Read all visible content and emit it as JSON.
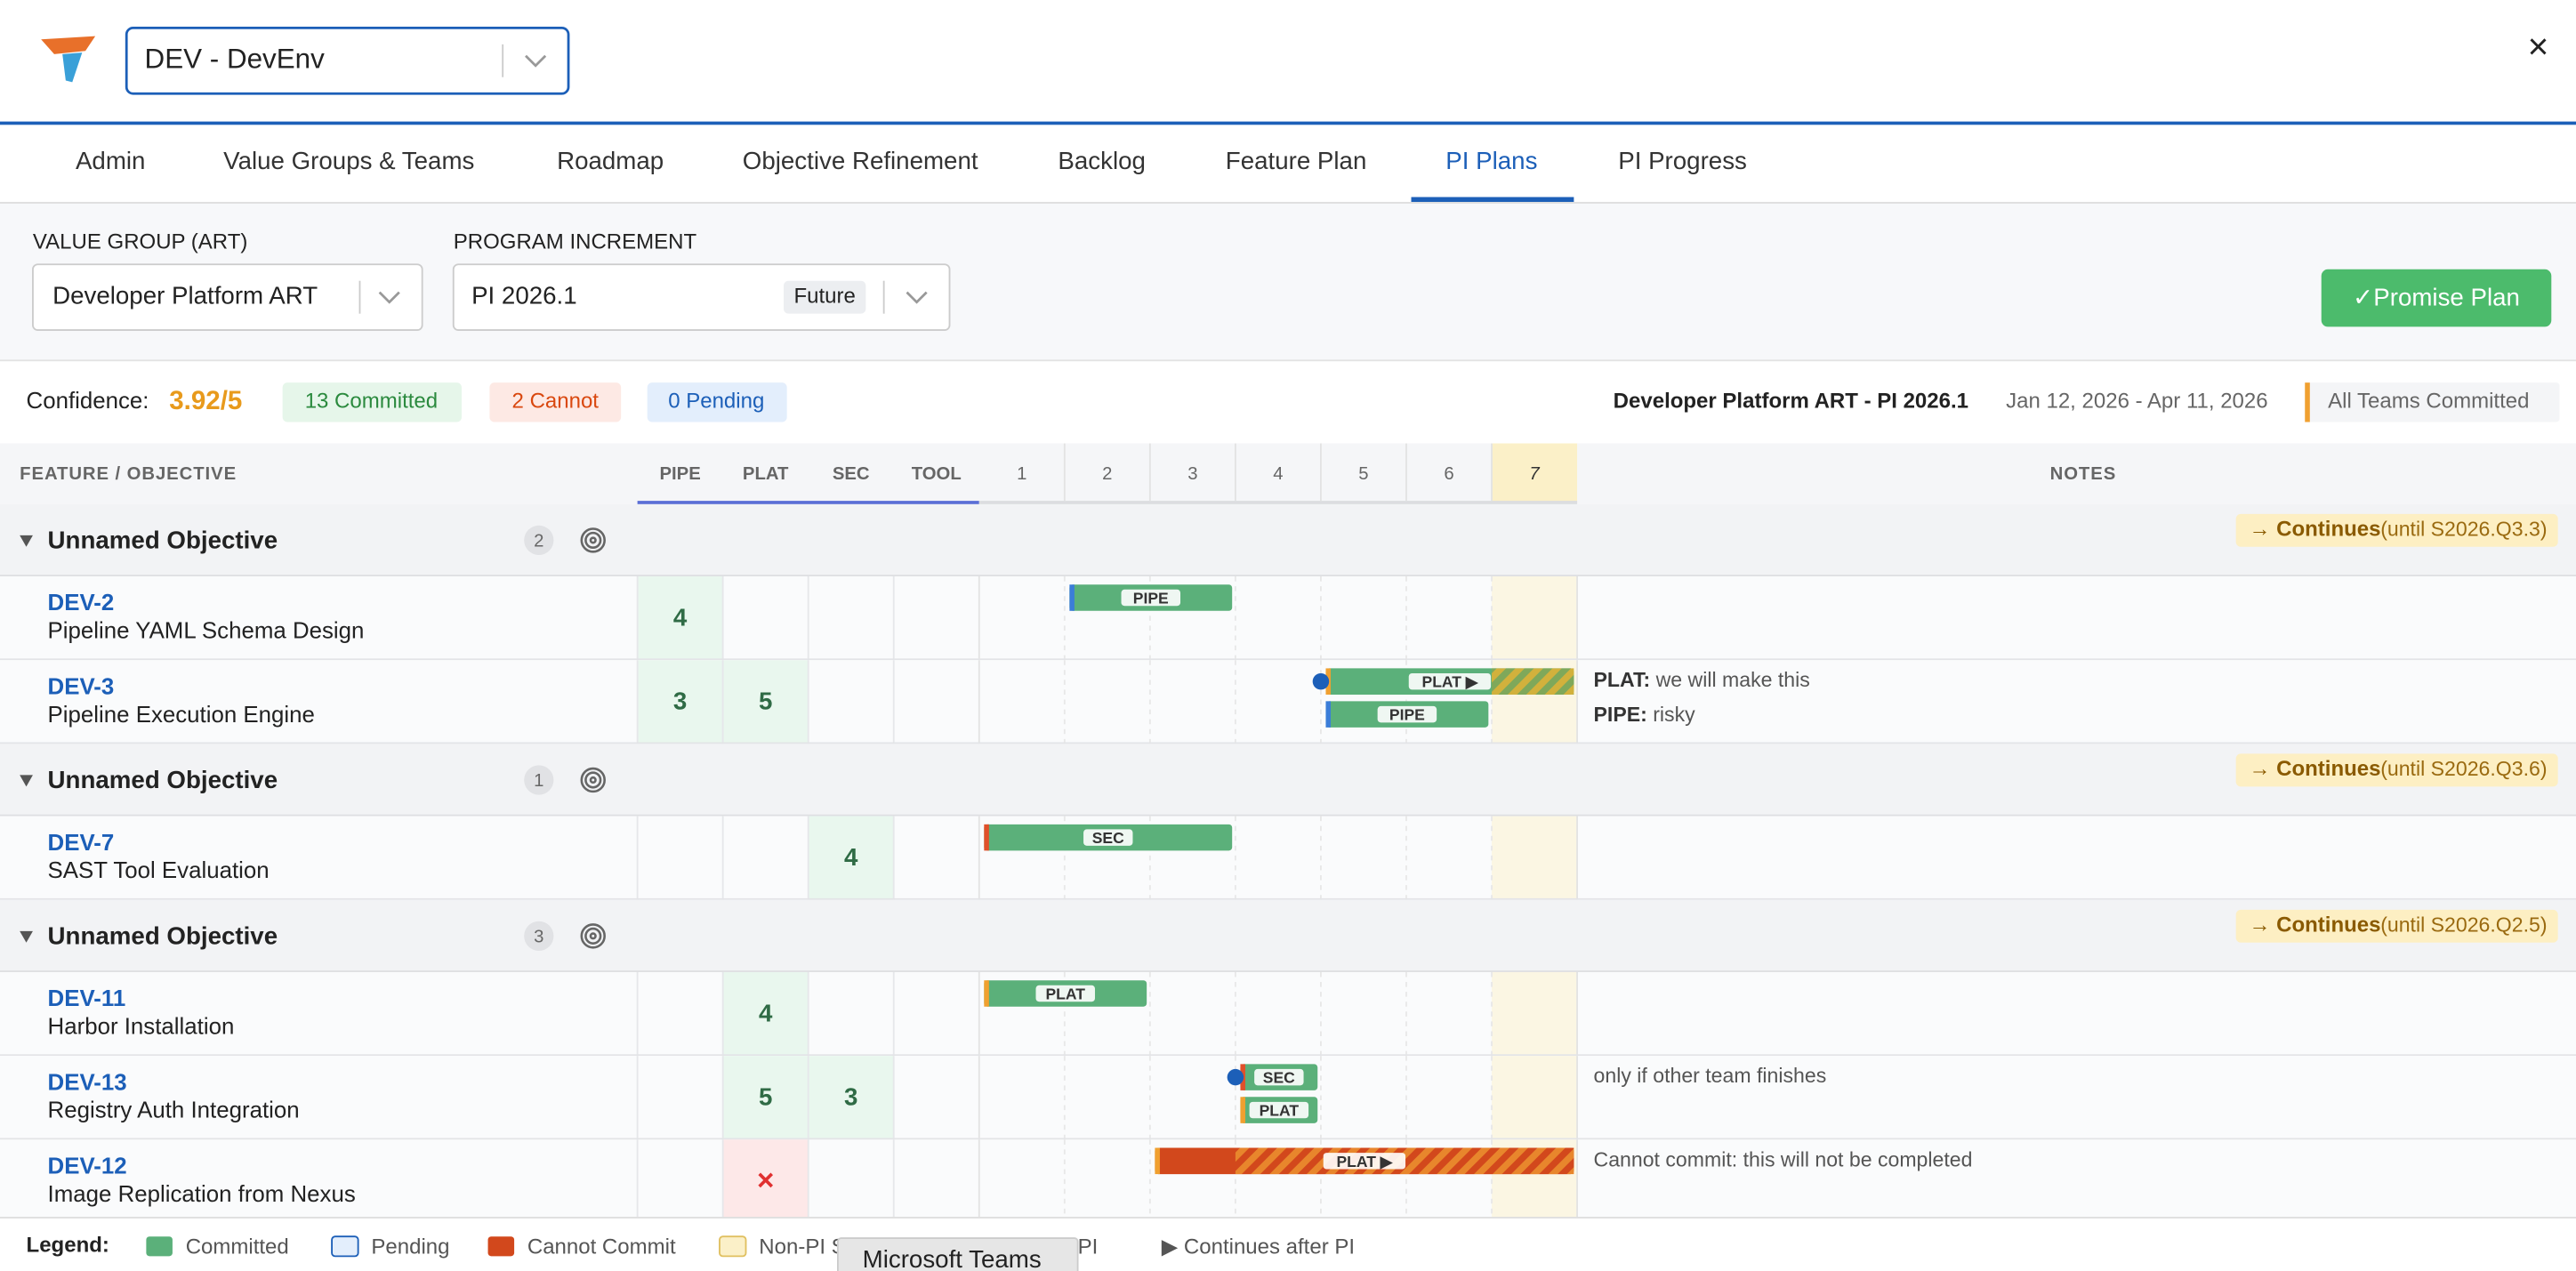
{
  "header": {
    "env": "DEV - DevEnv",
    "close": "×"
  },
  "tabs": [
    "Admin",
    "Value Groups & Teams",
    "Roadmap",
    "Objective Refinement",
    "Backlog",
    "Feature Plan",
    "PI Plans",
    "PI Progress"
  ],
  "filters": {
    "value_group_label": "VALUE GROUP (ART)",
    "value_group": "Developer Platform ART",
    "pi_label": "PROGRAM INCREMENT",
    "pi": "PI 2026.1",
    "pi_badge": "Future",
    "button": "✓Promise Plan"
  },
  "summary": {
    "confidence_label": "Confidence:",
    "confidence": "3.92/5",
    "committed": "13 Committed",
    "cannot": "2 Cannot",
    "pending": "0 Pending",
    "title": "Developer Platform ART - PI 2026.1",
    "dates": "Jan 12, 2026 - Apr 11, 2026",
    "status": "All Teams Committed"
  },
  "table": {
    "feature_header": "FEATURE / OBJECTIVE",
    "teams": [
      "PIPE",
      "PLAT",
      "SEC",
      "TOOL"
    ],
    "sprints": [
      "1",
      "2",
      "3",
      "4",
      "5",
      "6",
      "7"
    ],
    "notes_header": "NOTES",
    "groups": [
      {
        "title": "Unnamed Objective",
        "count": "2",
        "continues": "→ Continues",
        "until": "(until S2026.Q3.3)",
        "features": [
          {
            "id": "DEV-2",
            "name": "Pipeline YAML Schema Design",
            "points": [
              4,
              null,
              null,
              null
            ],
            "bars": [
              {
                "label": "PIPE",
                "from": 2,
                "to": 3,
                "accent": "#3b7dd8",
                "status": "committed"
              }
            ],
            "notes": []
          },
          {
            "id": "DEV-3",
            "name": "Pipeline Execution Engine",
            "points": [
              3,
              5,
              null,
              null
            ],
            "bars": [
              {
                "label": "PLAT ▶",
                "from": 5,
                "to": 7,
                "accent": "#f0a030",
                "status": "committed",
                "hatch_from": 7,
                "starts_before": true
              },
              {
                "label": "PIPE",
                "from": 5,
                "to": 6,
                "accent": "#3b7dd8",
                "status": "committed"
              }
            ],
            "notes": [
              {
                "team": "PLAT:",
                "text": "we will make this"
              },
              {
                "team": "PIPE:",
                "text": "risky"
              }
            ]
          }
        ]
      },
      {
        "title": "Unnamed Objective",
        "count": "1",
        "continues": "→ Continues",
        "until": "(until S2026.Q3.6)",
        "features": [
          {
            "id": "DEV-7",
            "name": "SAST Tool Evaluation",
            "points": [
              null,
              null,
              4,
              null
            ],
            "bars": [
              {
                "label": "SEC",
                "from": 1,
                "to": 3,
                "accent": "#e0502a",
                "status": "committed"
              }
            ],
            "notes": []
          }
        ]
      },
      {
        "title": "Unnamed Objective",
        "count": "3",
        "continues": "→ Continues",
        "until": "(until S2026.Q2.5)",
        "features": [
          {
            "id": "DEV-11",
            "name": "Harbor Installation",
            "points": [
              null,
              4,
              null,
              null
            ],
            "bars": [
              {
                "label": "PLAT",
                "from": 1,
                "to": 2,
                "accent": "#f0a030",
                "status": "committed"
              }
            ],
            "notes": []
          },
          {
            "id": "DEV-13",
            "name": "Registry Auth Integration",
            "points": [
              null,
              5,
              3,
              null
            ],
            "bars": [
              {
                "label": "SEC",
                "from": 4,
                "to": 4,
                "accent": "#e0502a",
                "status": "committed",
                "starts_before": true
              },
              {
                "label": "PLAT",
                "from": 4,
                "to": 4,
                "accent": "#f0a030",
                "status": "committed"
              }
            ],
            "notes": [
              {
                "text": "only if other team finishes"
              }
            ]
          },
          {
            "id": "DEV-12",
            "name": "Image Replication from Nexus",
            "points": [
              null,
              "×",
              null,
              null
            ],
            "bars": [
              {
                "label": "PLAT ▶",
                "from": 3,
                "to": 7,
                "accent": "#f0a030",
                "status": "cannot",
                "hatch_from": 4
              }
            ],
            "notes": [
              {
                "text": "Cannot commit: this will not be completed"
              }
            ]
          }
        ]
      }
    ]
  },
  "legend": {
    "title": "Legend:",
    "items": [
      "Committed",
      "Pending",
      "Cannot Commit",
      "Non-PI Sprint",
      "Starts before PI",
      "▶ Continues after PI"
    ]
  },
  "overlay": "Microsoft Teams"
}
